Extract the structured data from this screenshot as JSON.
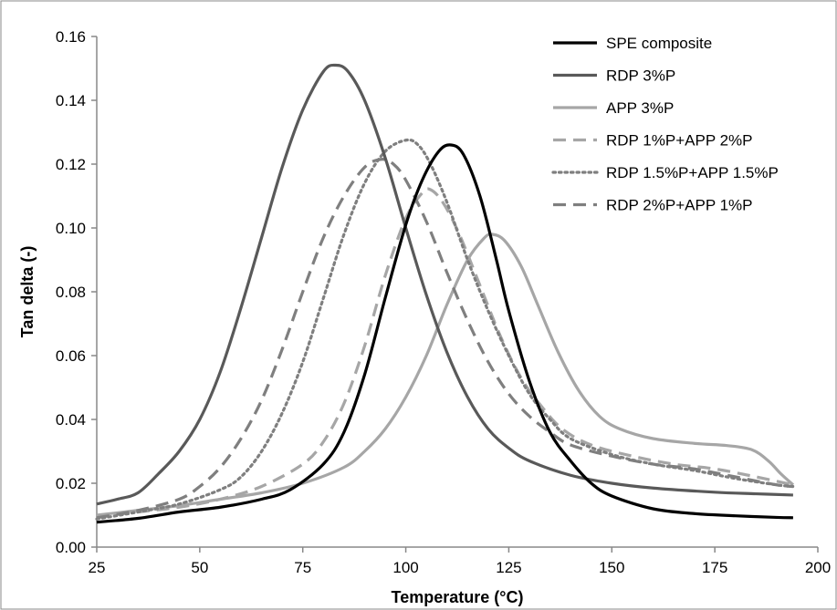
{
  "chart_data": {
    "type": "line",
    "title": "",
    "xlabel": "Temperature (°C)",
    "ylabel": "Tan delta (-)",
    "xlim": [
      25,
      200
    ],
    "ylim": [
      0,
      0.16
    ],
    "xticks": [
      "25",
      "50",
      "75",
      "100",
      "125",
      "150",
      "175",
      "200"
    ],
    "yticks": [
      "0.00",
      "0.02",
      "0.04",
      "0.06",
      "0.08",
      "0.10",
      "0.12",
      "0.14",
      "0.16"
    ],
    "grid": false,
    "legend_position": "top-right",
    "series": [
      {
        "name": "SPE composite",
        "color": "#000000",
        "dash": "solid",
        "points": [
          [
            25,
            0.0078
          ],
          [
            35,
            0.009
          ],
          [
            45,
            0.011
          ],
          [
            55,
            0.0125
          ],
          [
            65,
            0.015
          ],
          [
            72,
            0.018
          ],
          [
            80,
            0.026
          ],
          [
            85,
            0.036
          ],
          [
            90,
            0.054
          ],
          [
            95,
            0.078
          ],
          [
            100,
            0.101
          ],
          [
            104,
            0.115
          ],
          [
            108,
            0.124
          ],
          [
            111,
            0.126
          ],
          [
            114,
            0.123
          ],
          [
            118,
            0.11
          ],
          [
            122,
            0.09
          ],
          [
            125,
            0.074
          ],
          [
            130,
            0.052
          ],
          [
            135,
            0.036
          ],
          [
            140,
            0.027
          ],
          [
            145,
            0.02
          ],
          [
            150,
            0.016
          ],
          [
            160,
            0.012
          ],
          [
            170,
            0.0105
          ],
          [
            180,
            0.0098
          ],
          [
            190,
            0.0093
          ],
          [
            194,
            0.0092
          ]
        ]
      },
      {
        "name": "RDP 3%P",
        "color": "#595959",
        "dash": "solid",
        "points": [
          [
            25,
            0.0135
          ],
          [
            30,
            0.015
          ],
          [
            35,
            0.017
          ],
          [
            40,
            0.023
          ],
          [
            45,
            0.03
          ],
          [
            50,
            0.04
          ],
          [
            55,
            0.055
          ],
          [
            60,
            0.075
          ],
          [
            65,
            0.097
          ],
          [
            70,
            0.119
          ],
          [
            75,
            0.137
          ],
          [
            80,
            0.149
          ],
          [
            83,
            0.151
          ],
          [
            86,
            0.149
          ],
          [
            90,
            0.14
          ],
          [
            95,
            0.122
          ],
          [
            100,
            0.1
          ],
          [
            105,
            0.079
          ],
          [
            110,
            0.061
          ],
          [
            115,
            0.047
          ],
          [
            120,
            0.037
          ],
          [
            125,
            0.031
          ],
          [
            130,
            0.027
          ],
          [
            140,
            0.0225
          ],
          [
            150,
            0.02
          ],
          [
            160,
            0.0185
          ],
          [
            175,
            0.0172
          ],
          [
            185,
            0.0167
          ],
          [
            194,
            0.0163
          ]
        ]
      },
      {
        "name": "APP 3%P",
        "color": "#a6a6a6",
        "dash": "solid",
        "points": [
          [
            25,
            0.01
          ],
          [
            35,
            0.0115
          ],
          [
            45,
            0.013
          ],
          [
            55,
            0.015
          ],
          [
            65,
            0.017
          ],
          [
            75,
            0.02
          ],
          [
            85,
            0.025
          ],
          [
            90,
            0.03
          ],
          [
            95,
            0.037
          ],
          [
            100,
            0.047
          ],
          [
            105,
            0.06
          ],
          [
            110,
            0.076
          ],
          [
            115,
            0.09
          ],
          [
            119,
            0.0968
          ],
          [
            121,
            0.098
          ],
          [
            124,
            0.096
          ],
          [
            128,
            0.088
          ],
          [
            132,
            0.076
          ],
          [
            137,
            0.061
          ],
          [
            142,
            0.049
          ],
          [
            147,
            0.041
          ],
          [
            152,
            0.037
          ],
          [
            160,
            0.034
          ],
          [
            170,
            0.0325
          ],
          [
            178,
            0.0318
          ],
          [
            184,
            0.0305
          ],
          [
            188,
            0.027
          ],
          [
            191,
            0.023
          ],
          [
            194,
            0.0195
          ]
        ]
      },
      {
        "name": "RDP 1%P+APP 2%P",
        "color": "#a6a6a6",
        "dash": "dashed",
        "points": [
          [
            25,
            0.0095
          ],
          [
            35,
            0.011
          ],
          [
            45,
            0.0125
          ],
          [
            55,
            0.015
          ],
          [
            65,
            0.019
          ],
          [
            75,
            0.026
          ],
          [
            80,
            0.033
          ],
          [
            85,
            0.045
          ],
          [
            90,
            0.063
          ],
          [
            95,
            0.085
          ],
          [
            100,
            0.103
          ],
          [
            104,
            0.111
          ],
          [
            106,
            0.112
          ],
          [
            109,
            0.108
          ],
          [
            113,
            0.098
          ],
          [
            118,
            0.082
          ],
          [
            123,
            0.066
          ],
          [
            128,
            0.053
          ],
          [
            133,
            0.044
          ],
          [
            138,
            0.037
          ],
          [
            145,
            0.032
          ],
          [
            155,
            0.0285
          ],
          [
            165,
            0.026
          ],
          [
            175,
            0.0245
          ],
          [
            185,
            0.022
          ],
          [
            194,
            0.0195
          ]
        ]
      },
      {
        "name": "RDP 1.5%P+APP 1.5%P",
        "color": "#7f7f7f",
        "dash": "dotted",
        "points": [
          [
            25,
            0.0088
          ],
          [
            35,
            0.011
          ],
          [
            45,
            0.0135
          ],
          [
            55,
            0.018
          ],
          [
            60,
            0.022
          ],
          [
            65,
            0.03
          ],
          [
            70,
            0.042
          ],
          [
            75,
            0.058
          ],
          [
            80,
            0.078
          ],
          [
            85,
            0.098
          ],
          [
            90,
            0.114
          ],
          [
            95,
            0.124
          ],
          [
            100,
            0.1275
          ],
          [
            103,
            0.126
          ],
          [
            106,
            0.12
          ],
          [
            110,
            0.108
          ],
          [
            115,
            0.09
          ],
          [
            120,
            0.074
          ],
          [
            125,
            0.06
          ],
          [
            130,
            0.048
          ],
          [
            135,
            0.04
          ],
          [
            140,
            0.034
          ],
          [
            150,
            0.029
          ],
          [
            160,
            0.026
          ],
          [
            170,
            0.024
          ],
          [
            180,
            0.0215
          ],
          [
            190,
            0.0195
          ],
          [
            194,
            0.019
          ]
        ]
      },
      {
        "name": "RDP 2%P+APP 1%P",
        "color": "#7f7f7f",
        "dash": "dashed",
        "points": [
          [
            25,
            0.0092
          ],
          [
            35,
            0.0115
          ],
          [
            45,
            0.015
          ],
          [
            50,
            0.019
          ],
          [
            55,
            0.025
          ],
          [
            60,
            0.034
          ],
          [
            65,
            0.046
          ],
          [
            70,
            0.062
          ],
          [
            75,
            0.08
          ],
          [
            80,
            0.097
          ],
          [
            85,
            0.11
          ],
          [
            90,
            0.119
          ],
          [
            94,
            0.1215
          ],
          [
            97,
            0.12
          ],
          [
            100,
            0.115
          ],
          [
            105,
            0.102
          ],
          [
            110,
            0.086
          ],
          [
            115,
            0.071
          ],
          [
            120,
            0.058
          ],
          [
            125,
            0.048
          ],
          [
            130,
            0.041
          ],
          [
            135,
            0.036
          ],
          [
            140,
            0.032
          ],
          [
            150,
            0.0285
          ],
          [
            160,
            0.026
          ],
          [
            170,
            0.0245
          ],
          [
            180,
            0.022
          ],
          [
            190,
            0.0195
          ],
          [
            194,
            0.019
          ]
        ]
      }
    ]
  }
}
